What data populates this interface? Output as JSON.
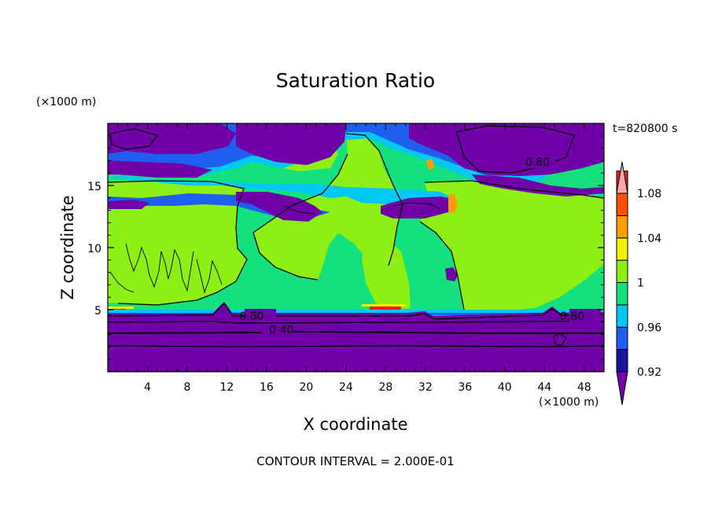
{
  "chart_data": {
    "type": "heatmap",
    "title": "Saturation Ratio",
    "xlabel": "X coordinate",
    "ylabel": "Z coordinate",
    "x_unit": "(×1000 m)",
    "y_unit": "(×1000 m)",
    "time_label": "t=820800 s",
    "footer": "CONTOUR INTERVAL = 2.000E-01",
    "xlim": [
      0,
      50
    ],
    "ylim": [
      0,
      20
    ],
    "x_ticks": [
      4,
      8,
      12,
      16,
      20,
      24,
      28,
      32,
      36,
      40,
      44,
      48
    ],
    "x_tick_labels": [
      "4",
      "8",
      "12",
      "16",
      "20",
      "24",
      "28",
      "32",
      "36",
      "40",
      "44",
      "48"
    ],
    "y_ticks": [
      5,
      10,
      15
    ],
    "y_tick_labels": [
      "5",
      "10",
      "15"
    ],
    "colorbar": {
      "levels": [
        0.9,
        0.92,
        0.94,
        0.96,
        0.98,
        1.0,
        1.02,
        1.04,
        1.06,
        1.08,
        1.1
      ],
      "tick_values": [
        0.92,
        0.96,
        1.0,
        1.04,
        1.08
      ],
      "tick_labels": [
        "0.92",
        "0.96",
        "1",
        "1.04",
        "1.08"
      ],
      "colors": [
        "#7000a8",
        "#1a14a0",
        "#1e5ff0",
        "#00c8f5",
        "#14e07e",
        "#8cf014",
        "#f2f200",
        "#ffa000",
        "#ff5000",
        "#ee1c1c",
        "#f8a8a8"
      ]
    },
    "contour_labels": [
      {
        "text": "0.80",
        "x": 43.3,
        "y": 16.9
      },
      {
        "text": "0.80",
        "x": 14.5,
        "y": 4.5
      },
      {
        "text": "0.40",
        "x": 17.5,
        "y": 3.4
      },
      {
        "text": "0.80",
        "x": 46.8,
        "y": 4.5
      }
    ]
  }
}
